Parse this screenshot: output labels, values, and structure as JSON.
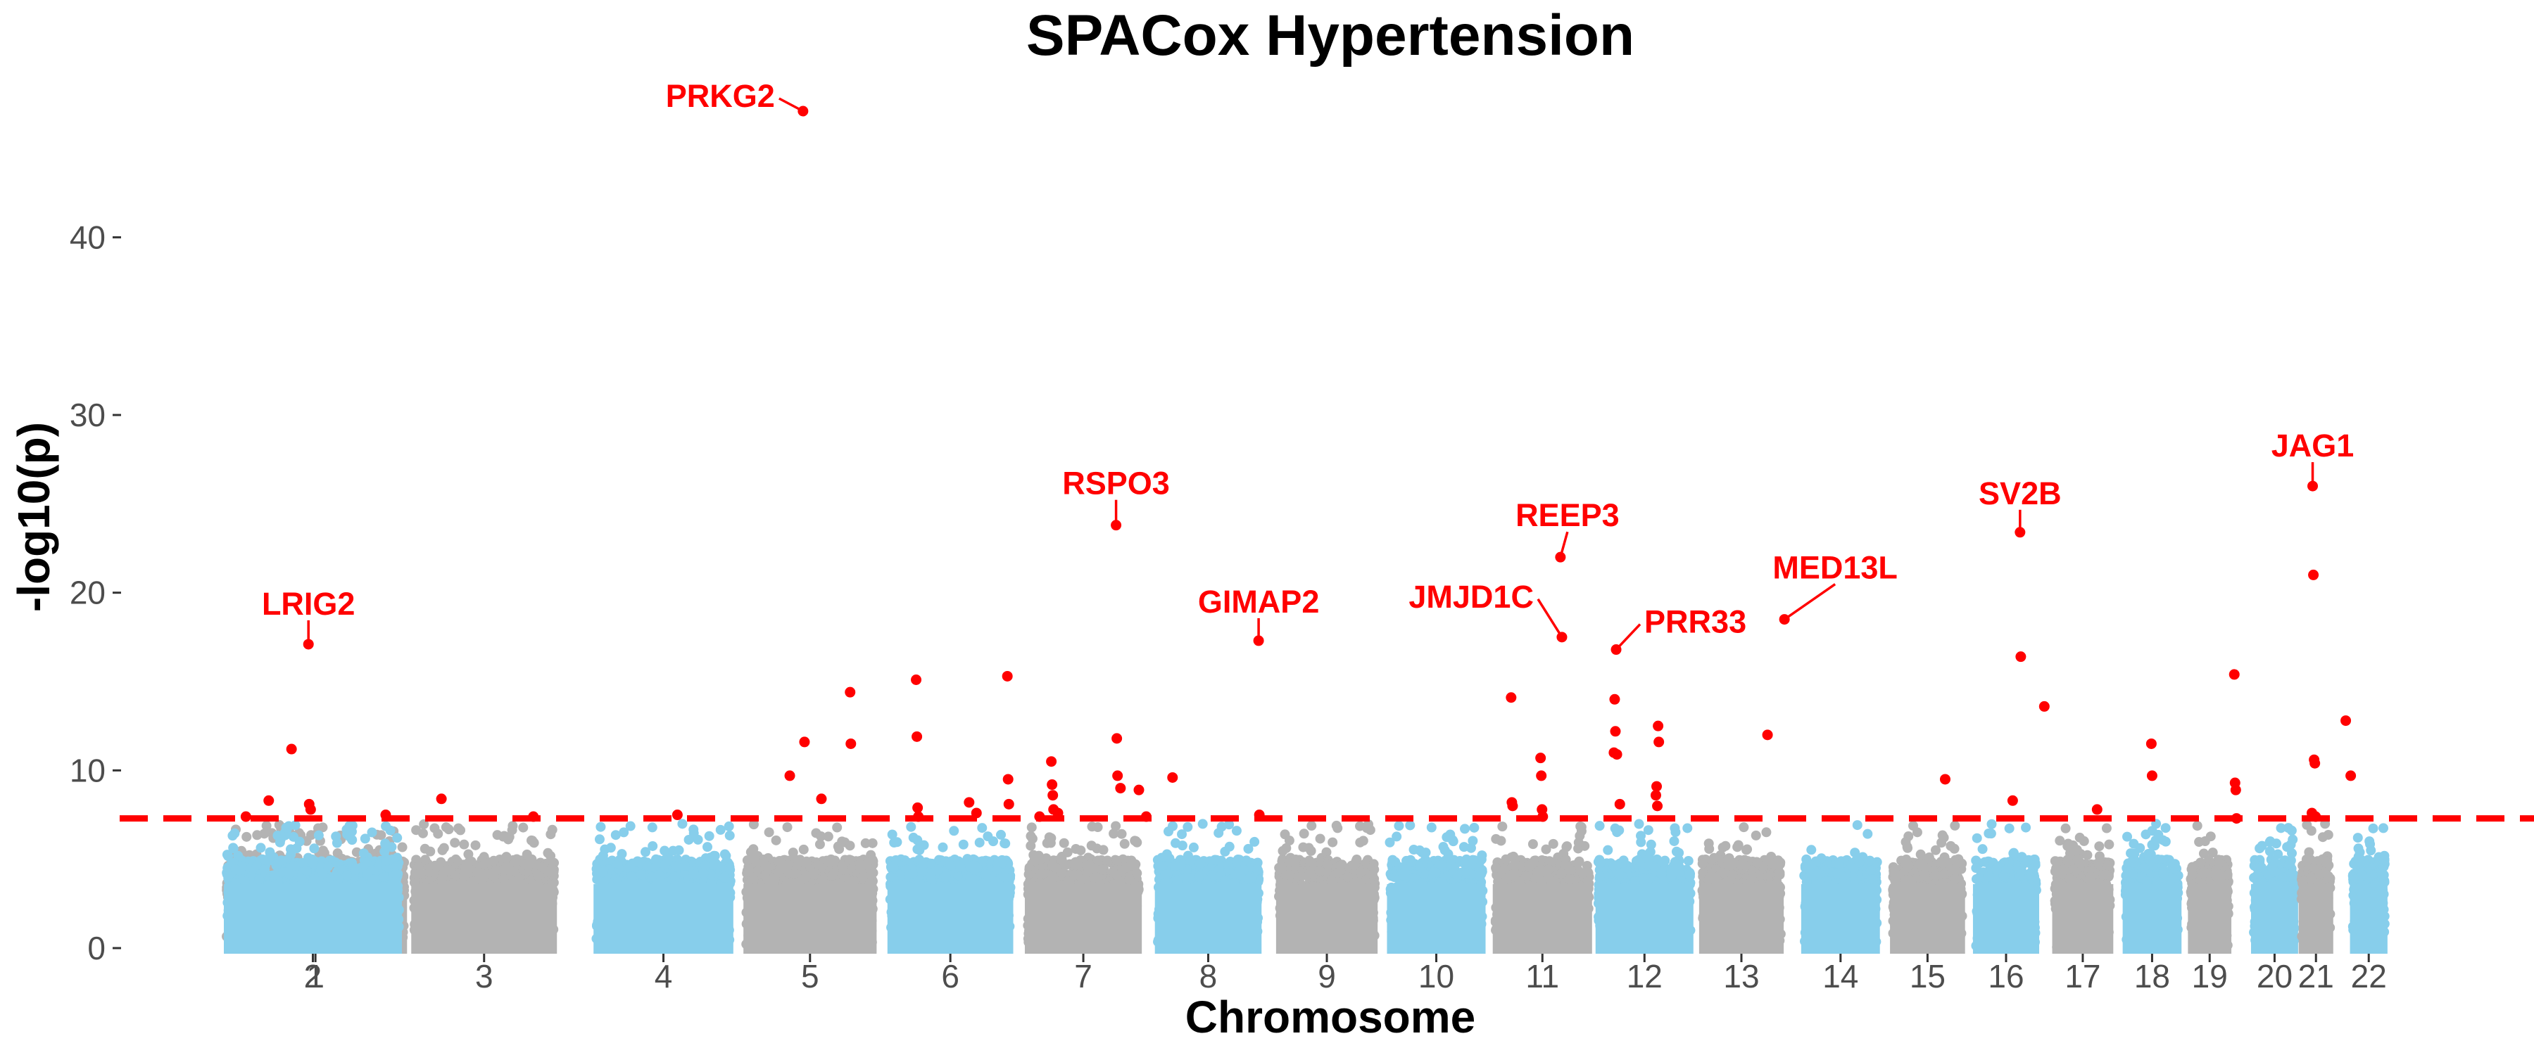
{
  "chart_data": {
    "type": "scatter",
    "subtype": "manhattan",
    "title": "SPACox Hypertension",
    "xlabel": "Chromosome",
    "ylabel": "-log10(p)",
    "ylim": [
      0,
      49
    ],
    "yticks": [
      0,
      10,
      20,
      30,
      40
    ],
    "grid": false,
    "legend": "none",
    "significance_threshold": 7.3,
    "colors": {
      "chromosome_odd": "#b3b3b3",
      "chromosome_even": "#87ceeb",
      "significant": "#ff0000",
      "threshold_line": "#ff0000",
      "tick_label": "#4d4d4d"
    },
    "chromosomes": [
      {
        "label": "1",
        "start": 0,
        "end": 249
      },
      {
        "label": "2",
        "start": 249,
        "end": 491
      },
      {
        "label": "3",
        "start": 491,
        "end": 689
      },
      {
        "label": "4",
        "start": 689,
        "end": 879
      },
      {
        "label": "5",
        "start": 879,
        "end": 1060
      },
      {
        "label": "6",
        "start": 1060,
        "end": 1231
      },
      {
        "label": "7",
        "start": 1231,
        "end": 1390
      },
      {
        "label": "8",
        "start": 1390,
        "end": 1535
      },
      {
        "label": "9",
        "start": 1535,
        "end": 1673
      },
      {
        "label": "10",
        "start": 1673,
        "end": 1807
      },
      {
        "label": "11",
        "start": 1807,
        "end": 1942
      },
      {
        "label": "12",
        "start": 1942,
        "end": 2075
      },
      {
        "label": "13",
        "start": 2075,
        "end": 2190
      },
      {
        "label": "14",
        "start": 2190,
        "end": 2297
      },
      {
        "label": "15",
        "start": 2297,
        "end": 2399
      },
      {
        "label": "16",
        "start": 2399,
        "end": 2489
      },
      {
        "label": "17",
        "start": 2489,
        "end": 2572
      },
      {
        "label": "18",
        "start": 2572,
        "end": 2652
      },
      {
        "label": "19",
        "start": 2652,
        "end": 2711
      },
      {
        "label": "20",
        "start": 2711,
        "end": 2775
      },
      {
        "label": "21",
        "start": 2775,
        "end": 2822
      },
      {
        "label": "22",
        "start": 2822,
        "end": 2873
      }
    ],
    "significant_points": [
      {
        "x": 30,
        "y": 7.4
      },
      {
        "x": 61,
        "y": 8.3
      },
      {
        "x": 92,
        "y": 11.2
      },
      {
        "x": 115,
        "y": 17.1
      },
      {
        "x": 116,
        "y": 8.1
      },
      {
        "x": 118,
        "y": 7.8
      },
      {
        "x": 220,
        "y": 7.5
      },
      {
        "x": 290,
        "y": 8.4
      },
      {
        "x": 415,
        "y": 7.4
      },
      {
        "x": 605,
        "y": 7.5
      },
      {
        "x": 752,
        "y": 9.7
      },
      {
        "x": 770,
        "y": 47.1
      },
      {
        "x": 772,
        "y": 11.6
      },
      {
        "x": 795,
        "y": 8.4
      },
      {
        "x": 834,
        "y": 14.4
      },
      {
        "x": 835,
        "y": 11.5
      },
      {
        "x": 918,
        "y": 15.1
      },
      {
        "x": 919,
        "y": 11.9
      },
      {
        "x": 920,
        "y": 7.9
      },
      {
        "x": 921,
        "y": 7.4
      },
      {
        "x": 990,
        "y": 8.2
      },
      {
        "x": 1000,
        "y": 7.6
      },
      {
        "x": 1042,
        "y": 15.3
      },
      {
        "x": 1043,
        "y": 9.5
      },
      {
        "x": 1044,
        "y": 8.1
      },
      {
        "x": 1080,
        "y": 7.4
      },
      {
        "x": 1096,
        "y": 10.5
      },
      {
        "x": 1097,
        "y": 9.2
      },
      {
        "x": 1098,
        "y": 8.6
      },
      {
        "x": 1099,
        "y": 7.8
      },
      {
        "x": 1105,
        "y": 7.6
      },
      {
        "x": 1184,
        "y": 23.8
      },
      {
        "x": 1185,
        "y": 11.8
      },
      {
        "x": 1186,
        "y": 9.7
      },
      {
        "x": 1190,
        "y": 9.0
      },
      {
        "x": 1215,
        "y": 8.9
      },
      {
        "x": 1225,
        "y": 7.4
      },
      {
        "x": 1255,
        "y": 9.6
      },
      {
        "x": 1372,
        "y": 17.3
      },
      {
        "x": 1373,
        "y": 7.5
      },
      {
        "x": 1698,
        "y": 14.1
      },
      {
        "x": 1699,
        "y": 8.2
      },
      {
        "x": 1700,
        "y": 8.0
      },
      {
        "x": 1765,
        "y": 22.0
      },
      {
        "x": 1767,
        "y": 17.5
      },
      {
        "x": 1738,
        "y": 10.7
      },
      {
        "x": 1739,
        "y": 9.7
      },
      {
        "x": 1740,
        "y": 7.8
      },
      {
        "x": 1741,
        "y": 7.4
      },
      {
        "x": 1835,
        "y": 16.8
      },
      {
        "x": 1833,
        "y": 14.0
      },
      {
        "x": 1834,
        "y": 12.2
      },
      {
        "x": 1832,
        "y": 11.0
      },
      {
        "x": 1836,
        "y": 10.9
      },
      {
        "x": 1840,
        "y": 8.1
      },
      {
        "x": 1892,
        "y": 12.5
      },
      {
        "x": 1893,
        "y": 11.6
      },
      {
        "x": 1890,
        "y": 9.1
      },
      {
        "x": 1889,
        "y": 8.6
      },
      {
        "x": 1891,
        "y": 8.0
      },
      {
        "x": 2035,
        "y": 12.0
      },
      {
        "x": 2058,
        "y": 18.5
      },
      {
        "x": 2265,
        "y": 9.5
      },
      {
        "x": 2351,
        "y": 8.3
      },
      {
        "x": 2361,
        "y": 23.4
      },
      {
        "x": 2362,
        "y": 16.4
      },
      {
        "x": 2394,
        "y": 13.6
      },
      {
        "x": 2460,
        "y": 7.8
      },
      {
        "x": 2528,
        "y": 11.5
      },
      {
        "x": 2529,
        "y": 9.7
      },
      {
        "x": 2635,
        "y": 15.4
      },
      {
        "x": 2636,
        "y": 9.3
      },
      {
        "x": 2637,
        "y": 8.9
      },
      {
        "x": 2638,
        "y": 7.3
      },
      {
        "x": 2730,
        "y": 26.0
      },
      {
        "x": 2731,
        "y": 21.0
      },
      {
        "x": 2732,
        "y": 10.6
      },
      {
        "x": 2733,
        "y": 10.4
      },
      {
        "x": 2729,
        "y": 7.6
      },
      {
        "x": 2734,
        "y": 7.4
      },
      {
        "x": 2775,
        "y": 12.8
      },
      {
        "x": 2776,
        "y": 9.7
      }
    ],
    "annotations": [
      {
        "text": "PRKG2",
        "x": 770,
        "y": 47.1
      },
      {
        "text": "RSPO3",
        "x": 1184,
        "y": 23.8
      },
      {
        "text": "LRIG2",
        "x": 115,
        "y": 17.1
      },
      {
        "text": "GIMAP2",
        "x": 1372,
        "y": 17.3
      },
      {
        "text": "JMJD1C",
        "x": 1767,
        "y": 17.5
      },
      {
        "text": "REEP3",
        "x": 1765,
        "y": 22.0
      },
      {
        "text": "PRR33",
        "x": 1835,
        "y": 16.8
      },
      {
        "text": "MED13L",
        "x": 2058,
        "y": 18.5
      },
      {
        "text": "SV2B",
        "x": 2361,
        "y": 23.4
      },
      {
        "text": "JAG1",
        "x": 2730,
        "y": 26.0
      }
    ]
  }
}
